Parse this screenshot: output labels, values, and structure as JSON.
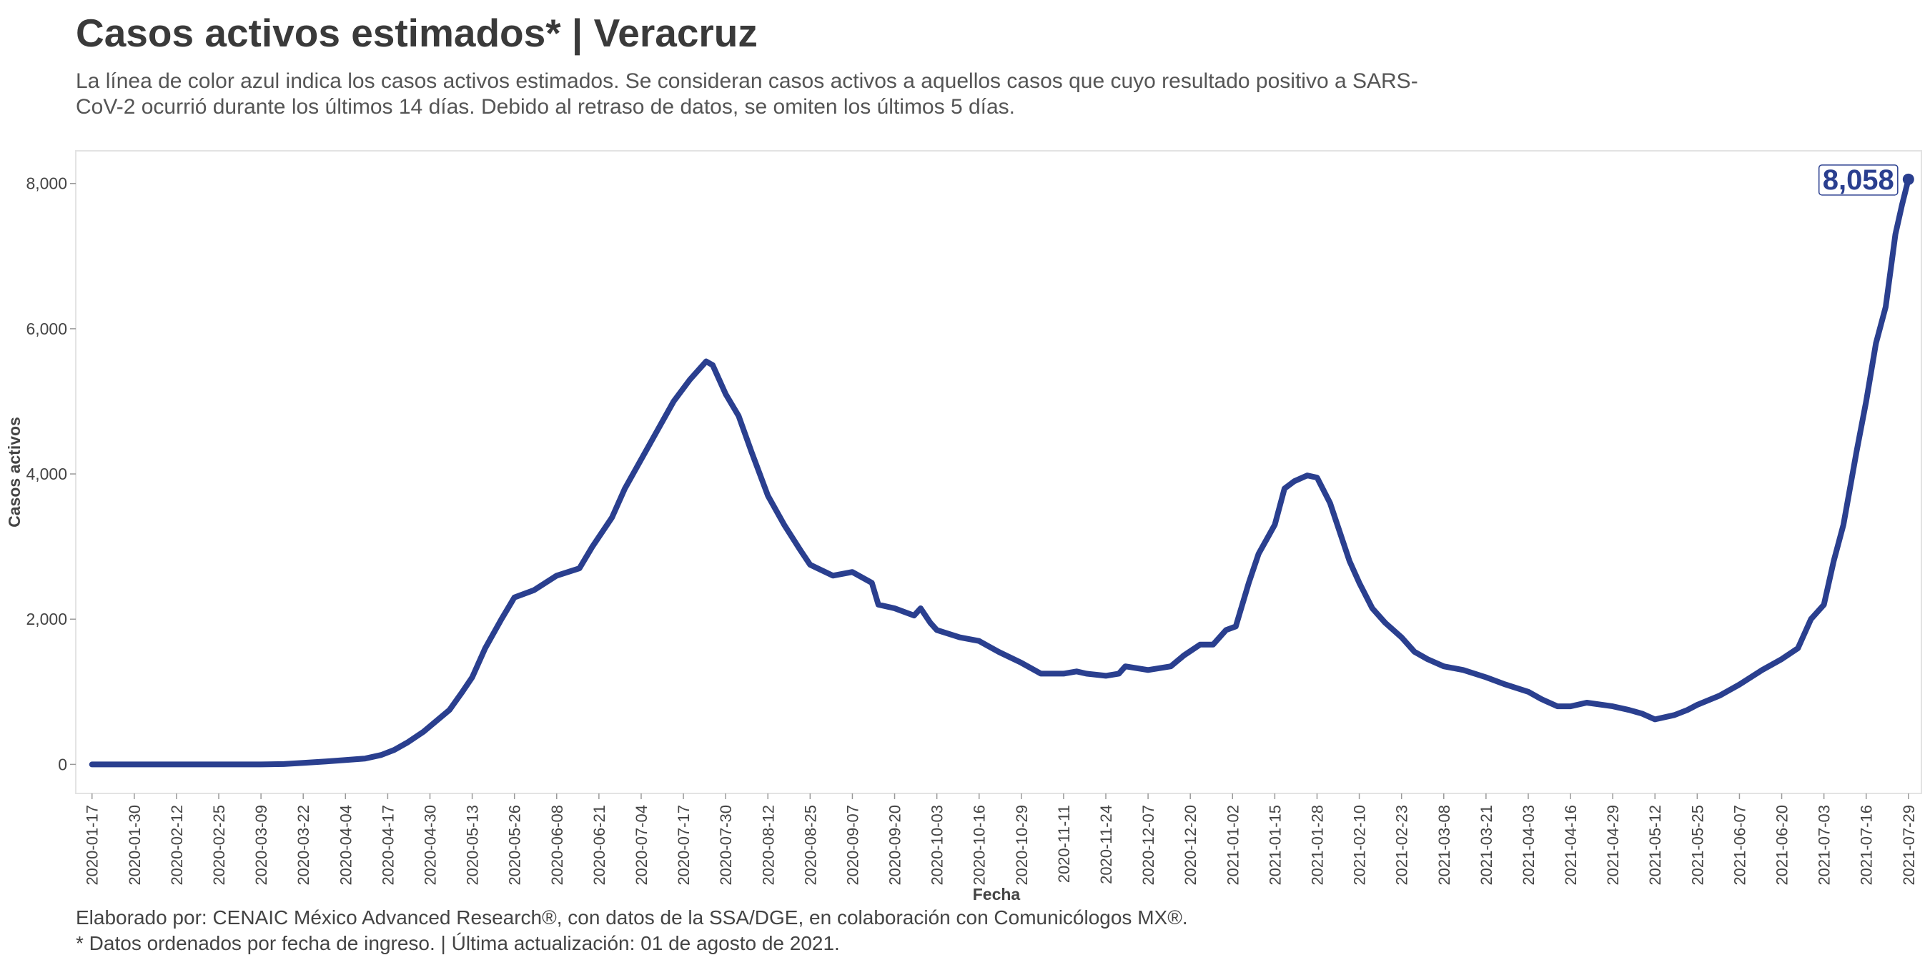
{
  "header": {
    "title": "Casos activos estimados* | Veracruz",
    "subtitle": "La línea de color azul indica los casos activos estimados. Se consideran casos activos a aquellos casos que cuyo resultado positivo a SARS-CoV-2 ocurrió durante los últimos 14 días. Debido al retraso de datos, se omiten los últimos 5 días."
  },
  "footer": {
    "credit": "Elaborado por: CENAIC México Advanced Research®, con datos de la SSA/DGE, en colaboración con Comunicólogos MX®.",
    "note": "* Datos ordenados por fecha de ingreso. | Última actualización: 01 de agosto de 2021."
  },
  "colors": {
    "line": "#2a3f8f",
    "grid": "#e9e9e9",
    "frame": "#e3e3e3"
  },
  "chart_data": {
    "type": "line",
    "xlabel": "Fecha",
    "ylabel": "Casos activos",
    "xlim": [
      "2020-01-12",
      "2021-08-02"
    ],
    "ylim": [
      -400,
      8450
    ],
    "yticks": [
      0,
      2000,
      4000,
      6000,
      8000
    ],
    "ytick_labels": [
      "0",
      "2,000",
      "4,000",
      "6,000",
      "8,000"
    ],
    "xtick_labels": [
      "2020-01-17",
      "2020-01-30",
      "2020-02-12",
      "2020-02-25",
      "2020-03-09",
      "2020-03-22",
      "2020-04-04",
      "2020-04-17",
      "2020-04-30",
      "2020-05-13",
      "2020-05-26",
      "2020-06-08",
      "2020-06-21",
      "2020-07-04",
      "2020-07-17",
      "2020-07-30",
      "2020-08-12",
      "2020-08-25",
      "2020-09-07",
      "2020-09-20",
      "2020-10-03",
      "2020-10-16",
      "2020-10-29",
      "2020-11-11",
      "2020-11-24",
      "2020-12-07",
      "2020-12-20",
      "2021-01-02",
      "2021-01-15",
      "2021-01-28",
      "2021-02-10",
      "2021-02-23",
      "2021-03-08",
      "2021-03-21",
      "2021-04-03",
      "2021-04-16",
      "2021-04-29",
      "2021-05-12",
      "2021-05-25",
      "2021-06-07",
      "2021-06-20",
      "2021-07-03",
      "2021-07-16",
      "2021-07-29"
    ],
    "grid": false,
    "end_label": "8,058",
    "series": [
      {
        "color": "#2a3f8f",
        "points": [
          [
            "2020-01-17",
            0
          ],
          [
            "2020-02-25",
            0
          ],
          [
            "2020-03-09",
            0
          ],
          [
            "2020-03-16",
            5
          ],
          [
            "2020-03-22",
            20
          ],
          [
            "2020-03-29",
            40
          ],
          [
            "2020-04-04",
            60
          ],
          [
            "2020-04-10",
            80
          ],
          [
            "2020-04-15",
            130
          ],
          [
            "2020-04-19",
            200
          ],
          [
            "2020-04-23",
            300
          ],
          [
            "2020-04-28",
            450
          ],
          [
            "2020-05-02",
            600
          ],
          [
            "2020-05-06",
            750
          ],
          [
            "2020-05-10",
            1000
          ],
          [
            "2020-05-13",
            1200
          ],
          [
            "2020-05-17",
            1600
          ],
          [
            "2020-05-22",
            2000
          ],
          [
            "2020-05-26",
            2300
          ],
          [
            "2020-06-01",
            2400
          ],
          [
            "2020-06-08",
            2600
          ],
          [
            "2020-06-15",
            2700
          ],
          [
            "2020-06-19",
            3000
          ],
          [
            "2020-06-25",
            3400
          ],
          [
            "2020-06-29",
            3800
          ],
          [
            "2020-07-04",
            4200
          ],
          [
            "2020-07-09",
            4600
          ],
          [
            "2020-07-14",
            5000
          ],
          [
            "2020-07-19",
            5300
          ],
          [
            "2020-07-24",
            5550
          ],
          [
            "2020-07-26",
            5500
          ],
          [
            "2020-07-30",
            5100
          ],
          [
            "2020-08-03",
            4800
          ],
          [
            "2020-08-07",
            4300
          ],
          [
            "2020-08-12",
            3700
          ],
          [
            "2020-08-17",
            3300
          ],
          [
            "2020-08-22",
            2950
          ],
          [
            "2020-08-25",
            2750
          ],
          [
            "2020-09-01",
            2600
          ],
          [
            "2020-09-07",
            2650
          ],
          [
            "2020-09-13",
            2500
          ],
          [
            "2020-09-15",
            2200
          ],
          [
            "2020-09-20",
            2150
          ],
          [
            "2020-09-26",
            2050
          ],
          [
            "2020-09-28",
            2150
          ],
          [
            "2020-10-01",
            1950
          ],
          [
            "2020-10-03",
            1850
          ],
          [
            "2020-10-10",
            1750
          ],
          [
            "2020-10-16",
            1700
          ],
          [
            "2020-10-22",
            1550
          ],
          [
            "2020-10-29",
            1400
          ],
          [
            "2020-11-04",
            1250
          ],
          [
            "2020-11-11",
            1250
          ],
          [
            "2020-11-15",
            1280
          ],
          [
            "2020-11-18",
            1250
          ],
          [
            "2020-11-24",
            1220
          ],
          [
            "2020-11-28",
            1250
          ],
          [
            "2020-11-30",
            1350
          ],
          [
            "2020-12-07",
            1300
          ],
          [
            "2020-12-14",
            1350
          ],
          [
            "2020-12-18",
            1500
          ],
          [
            "2020-12-23",
            1650
          ],
          [
            "2020-12-27",
            1650
          ],
          [
            "2020-12-31",
            1850
          ],
          [
            "2021-01-03",
            1900
          ],
          [
            "2021-01-07",
            2500
          ],
          [
            "2021-01-10",
            2900
          ],
          [
            "2021-01-15",
            3300
          ],
          [
            "2021-01-18",
            3800
          ],
          [
            "2021-01-21",
            3900
          ],
          [
            "2021-01-25",
            3980
          ],
          [
            "2021-01-28",
            3950
          ],
          [
            "2021-02-01",
            3600
          ],
          [
            "2021-02-04",
            3200
          ],
          [
            "2021-02-07",
            2800
          ],
          [
            "2021-02-10",
            2500
          ],
          [
            "2021-02-14",
            2150
          ],
          [
            "2021-02-18",
            1950
          ],
          [
            "2021-02-23",
            1750
          ],
          [
            "2021-02-27",
            1550
          ],
          [
            "2021-03-03",
            1450
          ],
          [
            "2021-03-08",
            1350
          ],
          [
            "2021-03-14",
            1300
          ],
          [
            "2021-03-21",
            1200
          ],
          [
            "2021-03-27",
            1100
          ],
          [
            "2021-04-03",
            1000
          ],
          [
            "2021-04-07",
            900
          ],
          [
            "2021-04-12",
            800
          ],
          [
            "2021-04-16",
            800
          ],
          [
            "2021-04-21",
            850
          ],
          [
            "2021-04-29",
            800
          ],
          [
            "2021-05-04",
            750
          ],
          [
            "2021-05-08",
            700
          ],
          [
            "2021-05-12",
            620
          ],
          [
            "2021-05-18",
            680
          ],
          [
            "2021-05-22",
            750
          ],
          [
            "2021-05-25",
            820
          ],
          [
            "2021-06-01",
            950
          ],
          [
            "2021-06-07",
            1100
          ],
          [
            "2021-06-14",
            1300
          ],
          [
            "2021-06-20",
            1450
          ],
          [
            "2021-06-25",
            1600
          ],
          [
            "2021-06-29",
            2000
          ],
          [
            "2021-07-03",
            2200
          ],
          [
            "2021-07-06",
            2800
          ],
          [
            "2021-07-09",
            3300
          ],
          [
            "2021-07-13",
            4300
          ],
          [
            "2021-07-16",
            5000
          ],
          [
            "2021-07-19",
            5800
          ],
          [
            "2021-07-22",
            6300
          ],
          [
            "2021-07-25",
            7300
          ],
          [
            "2021-07-27",
            7700
          ],
          [
            "2021-07-29",
            8058
          ]
        ]
      }
    ]
  }
}
